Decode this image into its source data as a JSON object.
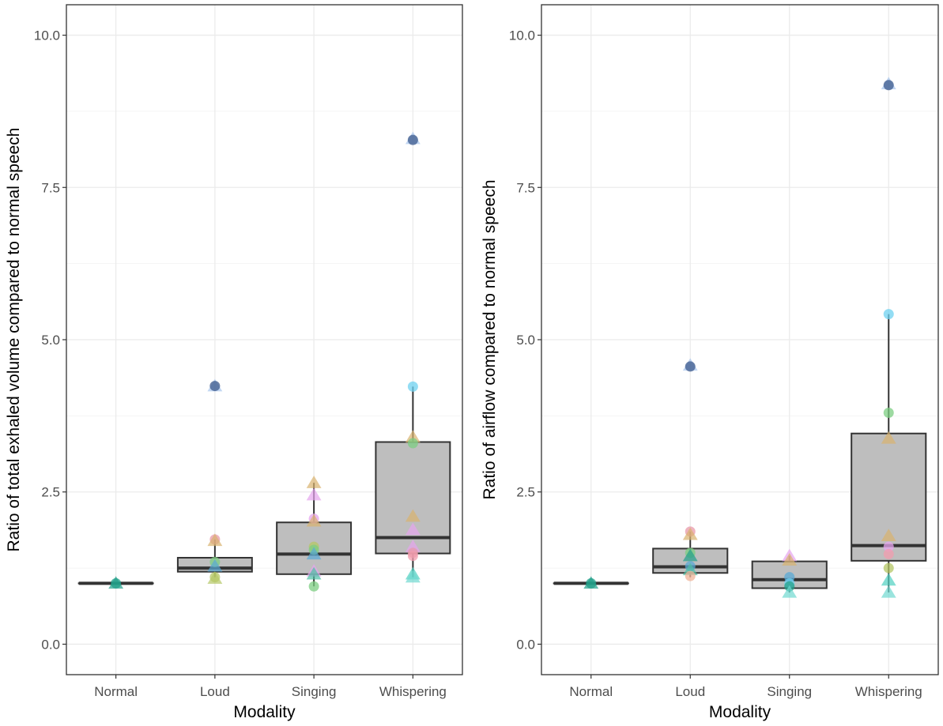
{
  "chart_data": [
    {
      "type": "box",
      "xlabel": "Modality",
      "ylabel": "Ratio of total exhaled volume compared to normal speech",
      "categories": [
        "Normal",
        "Loud",
        "Singing",
        "Whispering"
      ],
      "ylim": [
        -0.5,
        10.5
      ],
      "yticks": [
        0.0,
        2.5,
        5.0,
        7.5,
        10.0
      ],
      "ytick_labels": [
        "0.0",
        "2.5",
        "5.0",
        "7.5",
        "10.0"
      ],
      "grid": true,
      "boxes": [
        {
          "category": "Normal",
          "whisker_low": 1.0,
          "q1": 1.0,
          "median": 1.0,
          "q3": 1.0,
          "whisker_high": 1.0
        },
        {
          "category": "Loud",
          "whisker_low": 1.1,
          "q1": 1.19,
          "median": 1.25,
          "q3": 1.42,
          "whisker_high": 1.72
        },
        {
          "category": "Singing",
          "whisker_low": 0.95,
          "q1": 1.15,
          "median": 1.48,
          "q3": 2.0,
          "whisker_high": 2.65
        },
        {
          "category": "Whispering",
          "whisker_low": 1.1,
          "q1": 1.49,
          "median": 1.75,
          "q3": 3.32,
          "whisker_high": 4.23
        }
      ],
      "points": [
        {
          "category": "Normal",
          "y": 1.0,
          "shape": "triangle",
          "color": "#21a08a"
        },
        {
          "category": "Normal",
          "y": 1.0,
          "shape": "circle",
          "color": "#21a08a"
        },
        {
          "category": "Loud",
          "y": 4.24,
          "shape": "triangle",
          "color": "#a8c4ec"
        },
        {
          "category": "Loud",
          "y": 4.24,
          "shape": "circle",
          "color": "#3c5a8c"
        },
        {
          "category": "Loud",
          "y": 1.72,
          "shape": "circle",
          "color": "#e89aaa"
        },
        {
          "category": "Loud",
          "y": 1.7,
          "shape": "triangle",
          "color": "#d9b26e"
        },
        {
          "category": "Loud",
          "y": 1.35,
          "shape": "circle",
          "color": "#7ccd82"
        },
        {
          "category": "Loud",
          "y": 1.28,
          "shape": "triangle",
          "color": "#5aaad6"
        },
        {
          "category": "Loud",
          "y": 1.1,
          "shape": "circle",
          "color": "#b5c766"
        },
        {
          "category": "Loud",
          "y": 1.08,
          "shape": "triangle",
          "color": "#b5c766"
        },
        {
          "category": "Singing",
          "y": 2.65,
          "shape": "triangle",
          "color": "#d9b26e"
        },
        {
          "category": "Singing",
          "y": 2.45,
          "shape": "triangle",
          "color": "#e6a4ee"
        },
        {
          "category": "Singing",
          "y": 2.06,
          "shape": "circle",
          "color": "#e6a4ee"
        },
        {
          "category": "Singing",
          "y": 2.02,
          "shape": "triangle",
          "color": "#d9b26e"
        },
        {
          "category": "Singing",
          "y": 1.6,
          "shape": "circle",
          "color": "#b5c766"
        },
        {
          "category": "Singing",
          "y": 1.55,
          "shape": "circle",
          "color": "#7ccd82"
        },
        {
          "category": "Singing",
          "y": 1.48,
          "shape": "triangle",
          "color": "#5aaad6"
        },
        {
          "category": "Singing",
          "y": 1.2,
          "shape": "triangle",
          "color": "#e6a4ee"
        },
        {
          "category": "Singing",
          "y": 1.15,
          "shape": "triangle",
          "color": "#4fbfa5"
        },
        {
          "category": "Singing",
          "y": 0.95,
          "shape": "circle",
          "color": "#7ccd82"
        },
        {
          "category": "Whispering",
          "y": 8.3,
          "shape": "triangle",
          "color": "#a8c4ec"
        },
        {
          "category": "Whispering",
          "y": 8.28,
          "shape": "circle",
          "color": "#3c5a8c"
        },
        {
          "category": "Whispering",
          "y": 4.23,
          "shape": "circle",
          "color": "#6fd2f0"
        },
        {
          "category": "Whispering",
          "y": 3.4,
          "shape": "triangle",
          "color": "#d9b26e"
        },
        {
          "category": "Whispering",
          "y": 3.3,
          "shape": "circle",
          "color": "#7ccd82"
        },
        {
          "category": "Whispering",
          "y": 2.1,
          "shape": "triangle",
          "color": "#d9b26e"
        },
        {
          "category": "Whispering",
          "y": 1.88,
          "shape": "triangle",
          "color": "#e6a4ee"
        },
        {
          "category": "Whispering",
          "y": 1.6,
          "shape": "triangle",
          "color": "#e6a4ee"
        },
        {
          "category": "Whispering",
          "y": 1.5,
          "shape": "circle",
          "color": "#e89aaa"
        },
        {
          "category": "Whispering",
          "y": 1.45,
          "shape": "circle",
          "color": "#f19cad"
        },
        {
          "category": "Whispering",
          "y": 1.15,
          "shape": "triangle",
          "color": "#4fd0c0"
        },
        {
          "category": "Whispering",
          "y": 1.1,
          "shape": "triangle",
          "color": "#6fd8d0"
        }
      ]
    },
    {
      "type": "box",
      "xlabel": "Modality",
      "ylabel": "Ratio of airflow compared to normal speech",
      "categories": [
        "Normal",
        "Loud",
        "Singing",
        "Whispering"
      ],
      "ylim": [
        -0.5,
        10.5
      ],
      "yticks": [
        0.0,
        2.5,
        5.0,
        7.5,
        10.0
      ],
      "ytick_labels": [
        "0.0",
        "2.5",
        "5.0",
        "7.5",
        "10.0"
      ],
      "grid": true,
      "boxes": [
        {
          "category": "Normal",
          "whisker_low": 1.0,
          "q1": 1.0,
          "median": 1.0,
          "q3": 1.0,
          "whisker_high": 1.0
        },
        {
          "category": "Loud",
          "whisker_low": 1.1,
          "q1": 1.17,
          "median": 1.27,
          "q3": 1.57,
          "whisker_high": 1.85
        },
        {
          "category": "Singing",
          "whisker_low": 0.85,
          "q1": 0.92,
          "median": 1.06,
          "q3": 1.36,
          "whisker_high": 1.45
        },
        {
          "category": "Whispering",
          "whisker_low": 0.85,
          "q1": 1.37,
          "median": 1.62,
          "q3": 3.46,
          "whisker_high": 5.42
        }
      ],
      "points": [
        {
          "category": "Normal",
          "y": 1.0,
          "shape": "triangle",
          "color": "#21a08a"
        },
        {
          "category": "Normal",
          "y": 1.0,
          "shape": "circle",
          "color": "#21a08a"
        },
        {
          "category": "Loud",
          "y": 4.58,
          "shape": "triangle",
          "color": "#a8c4ec"
        },
        {
          "category": "Loud",
          "y": 4.56,
          "shape": "circle",
          "color": "#3c5a8c"
        },
        {
          "category": "Loud",
          "y": 1.85,
          "shape": "circle",
          "color": "#e89aaa"
        },
        {
          "category": "Loud",
          "y": 1.8,
          "shape": "triangle",
          "color": "#d9b26e"
        },
        {
          "category": "Loud",
          "y": 1.5,
          "shape": "circle",
          "color": "#7ccd82"
        },
        {
          "category": "Loud",
          "y": 1.45,
          "shape": "triangle",
          "color": "#21a08a"
        },
        {
          "category": "Loud",
          "y": 1.28,
          "shape": "circle",
          "color": "#5aaad6"
        },
        {
          "category": "Loud",
          "y": 1.22,
          "shape": "triangle",
          "color": "#4fbfa5"
        },
        {
          "category": "Loud",
          "y": 1.12,
          "shape": "circle",
          "color": "#f0b49a"
        },
        {
          "category": "Singing",
          "y": 1.45,
          "shape": "triangle",
          "color": "#e6a4ee"
        },
        {
          "category": "Singing",
          "y": 1.38,
          "shape": "triangle",
          "color": "#d9b26e"
        },
        {
          "category": "Singing",
          "y": 1.1,
          "shape": "circle",
          "color": "#5aaad6"
        },
        {
          "category": "Singing",
          "y": 1.0,
          "shape": "circle",
          "color": "#6fd2f0"
        },
        {
          "category": "Singing",
          "y": 0.95,
          "shape": "circle",
          "color": "#21a08a"
        },
        {
          "category": "Singing",
          "y": 0.85,
          "shape": "triangle",
          "color": "#6fd8d0"
        },
        {
          "category": "Whispering",
          "y": 9.2,
          "shape": "triangle",
          "color": "#a8c4ec"
        },
        {
          "category": "Whispering",
          "y": 9.18,
          "shape": "circle",
          "color": "#3c5a8c"
        },
        {
          "category": "Whispering",
          "y": 5.42,
          "shape": "circle",
          "color": "#6fd2f0"
        },
        {
          "category": "Whispering",
          "y": 3.8,
          "shape": "circle",
          "color": "#7ccd82"
        },
        {
          "category": "Whispering",
          "y": 3.38,
          "shape": "triangle",
          "color": "#d9b26e"
        },
        {
          "category": "Whispering",
          "y": 1.78,
          "shape": "triangle",
          "color": "#d9b26e"
        },
        {
          "category": "Whispering",
          "y": 1.6,
          "shape": "circle",
          "color": "#e6a4ee"
        },
        {
          "category": "Whispering",
          "y": 1.48,
          "shape": "circle",
          "color": "#f19cad"
        },
        {
          "category": "Whispering",
          "y": 1.25,
          "shape": "circle",
          "color": "#b5c766"
        },
        {
          "category": "Whispering",
          "y": 1.05,
          "shape": "triangle",
          "color": "#4fd0c0"
        },
        {
          "category": "Whispering",
          "y": 0.85,
          "shape": "triangle",
          "color": "#6fd8d0"
        }
      ]
    }
  ]
}
